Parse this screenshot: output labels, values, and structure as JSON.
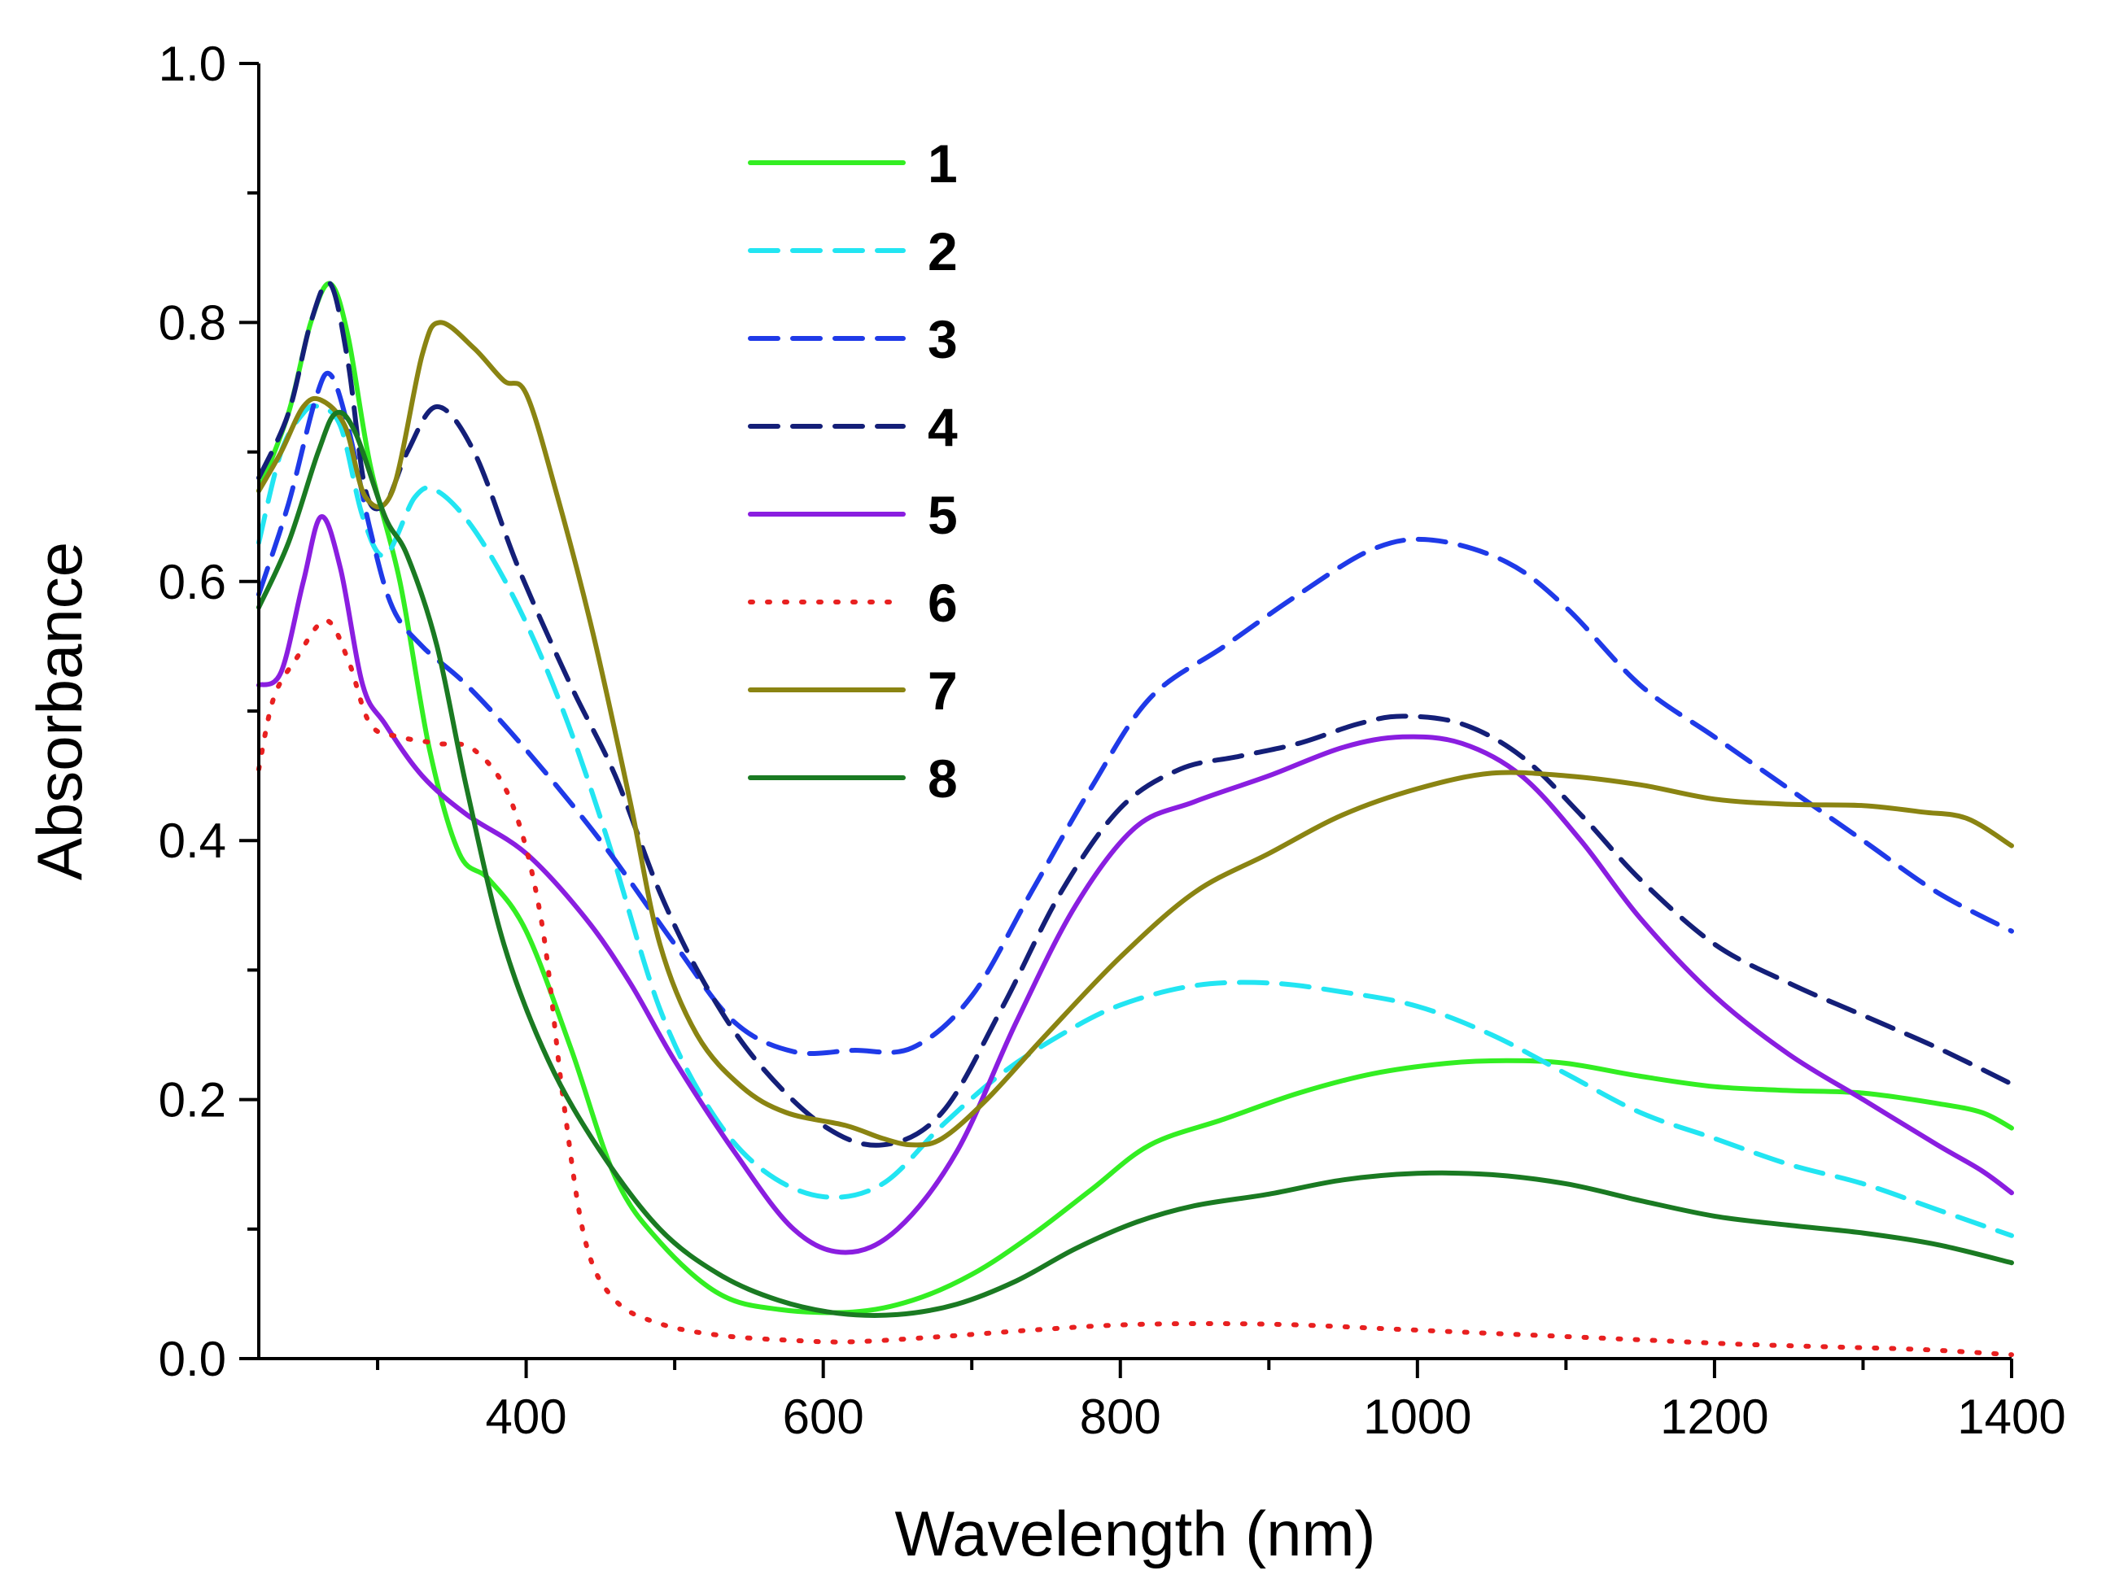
{
  "chart_data": {
    "type": "line",
    "title": "",
    "xlabel": "Wavelength (nm)",
    "ylabel": "Absorbance",
    "xlim": [
      220,
      1400
    ],
    "ylim": [
      0.0,
      1.0
    ],
    "x_major_ticks": [
      400,
      600,
      800,
      1000,
      1200,
      1400
    ],
    "x_minor_ticks": [
      300,
      500,
      700,
      900,
      1100,
      1300
    ],
    "x_tick_labels": [
      "400",
      "600",
      "800",
      "1000",
      "1200",
      "1400"
    ],
    "y_major_ticks": [
      0.0,
      0.2,
      0.4,
      0.6,
      0.8,
      1.0
    ],
    "y_minor_ticks": [
      0.1,
      0.3,
      0.5,
      0.7,
      0.9
    ],
    "y_tick_labels": [
      "0.0",
      "0.2",
      "0.4",
      "0.6",
      "0.8",
      "1.0"
    ],
    "grid": false,
    "legend_position": "top-center",
    "series": [
      {
        "name": "1",
        "color": "#33ee22",
        "dash": "solid",
        "points": [
          [
            220,
            0.67
          ],
          [
            240,
            0.73
          ],
          [
            255,
            0.8
          ],
          [
            268,
            0.83
          ],
          [
            280,
            0.79
          ],
          [
            295,
            0.69
          ],
          [
            315,
            0.6
          ],
          [
            335,
            0.47
          ],
          [
            355,
            0.39
          ],
          [
            375,
            0.37
          ],
          [
            400,
            0.33
          ],
          [
            430,
            0.24
          ],
          [
            460,
            0.14
          ],
          [
            490,
            0.09
          ],
          [
            530,
            0.05
          ],
          [
            570,
            0.038
          ],
          [
            620,
            0.036
          ],
          [
            660,
            0.045
          ],
          [
            700,
            0.065
          ],
          [
            740,
            0.095
          ],
          [
            780,
            0.13
          ],
          [
            820,
            0.165
          ],
          [
            870,
            0.185
          ],
          [
            920,
            0.205
          ],
          [
            970,
            0.22
          ],
          [
            1020,
            0.228
          ],
          [
            1060,
            0.23
          ],
          [
            1100,
            0.228
          ],
          [
            1150,
            0.218
          ],
          [
            1200,
            0.21
          ],
          [
            1250,
            0.207
          ],
          [
            1300,
            0.205
          ],
          [
            1350,
            0.197
          ],
          [
            1380,
            0.19
          ],
          [
            1400,
            0.178
          ]
        ]
      },
      {
        "name": "2",
        "color": "#22e5f2",
        "dash": "dashed",
        "points": [
          [
            220,
            0.63
          ],
          [
            235,
            0.7
          ],
          [
            250,
            0.73
          ],
          [
            260,
            0.735
          ],
          [
            275,
            0.72
          ],
          [
            290,
            0.65
          ],
          [
            305,
            0.62
          ],
          [
            325,
            0.665
          ],
          [
            340,
            0.67
          ],
          [
            365,
            0.64
          ],
          [
            395,
            0.58
          ],
          [
            425,
            0.5
          ],
          [
            455,
            0.4
          ],
          [
            490,
            0.27
          ],
          [
            525,
            0.19
          ],
          [
            560,
            0.145
          ],
          [
            600,
            0.125
          ],
          [
            640,
            0.135
          ],
          [
            680,
            0.18
          ],
          [
            720,
            0.22
          ],
          [
            760,
            0.25
          ],
          [
            800,
            0.273
          ],
          [
            850,
            0.288
          ],
          [
            900,
            0.29
          ],
          [
            950,
            0.283
          ],
          [
            1000,
            0.272
          ],
          [
            1050,
            0.25
          ],
          [
            1100,
            0.22
          ],
          [
            1150,
            0.19
          ],
          [
            1200,
            0.17
          ],
          [
            1250,
            0.15
          ],
          [
            1300,
            0.135
          ],
          [
            1350,
            0.115
          ],
          [
            1400,
            0.095
          ]
        ]
      },
      {
        "name": "3",
        "color": "#1f3ae8",
        "dash": "dashed",
        "points": [
          [
            220,
            0.59
          ],
          [
            240,
            0.66
          ],
          [
            258,
            0.74
          ],
          [
            268,
            0.76
          ],
          [
            280,
            0.72
          ],
          [
            295,
            0.64
          ],
          [
            310,
            0.58
          ],
          [
            330,
            0.55
          ],
          [
            360,
            0.52
          ],
          [
            400,
            0.47
          ],
          [
            450,
            0.4
          ],
          [
            500,
            0.32
          ],
          [
            540,
            0.26
          ],
          [
            580,
            0.237
          ],
          [
            620,
            0.238
          ],
          [
            660,
            0.24
          ],
          [
            700,
            0.28
          ],
          [
            740,
            0.36
          ],
          [
            780,
            0.44
          ],
          [
            820,
            0.51
          ],
          [
            870,
            0.55
          ],
          [
            920,
            0.59
          ],
          [
            970,
            0.625
          ],
          [
            1010,
            0.632
          ],
          [
            1060,
            0.615
          ],
          [
            1100,
            0.58
          ],
          [
            1150,
            0.52
          ],
          [
            1200,
            0.48
          ],
          [
            1250,
            0.44
          ],
          [
            1300,
            0.4
          ],
          [
            1350,
            0.36
          ],
          [
            1400,
            0.33
          ]
        ]
      },
      {
        "name": "4",
        "color": "#141f78",
        "dash": "dashed",
        "points": [
          [
            220,
            0.68
          ],
          [
            240,
            0.73
          ],
          [
            255,
            0.8
          ],
          [
            268,
            0.83
          ],
          [
            280,
            0.77
          ],
          [
            292,
            0.67
          ],
          [
            305,
            0.66
          ],
          [
            320,
            0.7
          ],
          [
            340,
            0.735
          ],
          [
            365,
            0.7
          ],
          [
            395,
            0.61
          ],
          [
            430,
            0.52
          ],
          [
            460,
            0.45
          ],
          [
            490,
            0.36
          ],
          [
            520,
            0.29
          ],
          [
            555,
            0.23
          ],
          [
            600,
            0.18
          ],
          [
            640,
            0.165
          ],
          [
            680,
            0.19
          ],
          [
            720,
            0.27
          ],
          [
            760,
            0.36
          ],
          [
            800,
            0.425
          ],
          [
            840,
            0.455
          ],
          [
            880,
            0.465
          ],
          [
            920,
            0.475
          ],
          [
            960,
            0.49
          ],
          [
            990,
            0.496
          ],
          [
            1030,
            0.49
          ],
          [
            1070,
            0.465
          ],
          [
            1110,
            0.42
          ],
          [
            1150,
            0.37
          ],
          [
            1200,
            0.32
          ],
          [
            1250,
            0.29
          ],
          [
            1300,
            0.265
          ],
          [
            1350,
            0.24
          ],
          [
            1400,
            0.212
          ]
        ]
      },
      {
        "name": "5",
        "color": "#8a1ee0",
        "dash": "solid",
        "points": [
          [
            220,
            0.52
          ],
          [
            235,
            0.53
          ],
          [
            250,
            0.6
          ],
          [
            262,
            0.65
          ],
          [
            275,
            0.61
          ],
          [
            290,
            0.52
          ],
          [
            305,
            0.49
          ],
          [
            330,
            0.45
          ],
          [
            360,
            0.42
          ],
          [
            400,
            0.39
          ],
          [
            440,
            0.34
          ],
          [
            470,
            0.29
          ],
          [
            500,
            0.23
          ],
          [
            540,
            0.16
          ],
          [
            580,
            0.1
          ],
          [
            615,
            0.082
          ],
          [
            650,
            0.1
          ],
          [
            690,
            0.16
          ],
          [
            730,
            0.26
          ],
          [
            770,
            0.35
          ],
          [
            810,
            0.41
          ],
          [
            850,
            0.43
          ],
          [
            900,
            0.45
          ],
          [
            950,
            0.472
          ],
          [
            990,
            0.48
          ],
          [
            1030,
            0.475
          ],
          [
            1070,
            0.45
          ],
          [
            1110,
            0.4
          ],
          [
            1150,
            0.34
          ],
          [
            1200,
            0.28
          ],
          [
            1250,
            0.235
          ],
          [
            1300,
            0.2
          ],
          [
            1350,
            0.165
          ],
          [
            1380,
            0.145
          ],
          [
            1400,
            0.128
          ]
        ]
      },
      {
        "name": "6",
        "color": "#e82020",
        "dash": "dotted",
        "points": [
          [
            220,
            0.455
          ],
          [
            230,
            0.51
          ],
          [
            245,
            0.54
          ],
          [
            265,
            0.57
          ],
          [
            280,
            0.54
          ],
          [
            295,
            0.49
          ],
          [
            315,
            0.48
          ],
          [
            340,
            0.475
          ],
          [
            365,
            0.47
          ],
          [
            390,
            0.43
          ],
          [
            410,
            0.34
          ],
          [
            425,
            0.2
          ],
          [
            440,
            0.09
          ],
          [
            460,
            0.045
          ],
          [
            490,
            0.027
          ],
          [
            530,
            0.018
          ],
          [
            580,
            0.014
          ],
          [
            620,
            0.013
          ],
          [
            680,
            0.017
          ],
          [
            740,
            0.022
          ],
          [
            800,
            0.026
          ],
          [
            860,
            0.027
          ],
          [
            920,
            0.026
          ],
          [
            980,
            0.023
          ],
          [
            1040,
            0.02
          ],
          [
            1100,
            0.017
          ],
          [
            1160,
            0.014
          ],
          [
            1220,
            0.011
          ],
          [
            1280,
            0.009
          ],
          [
            1340,
            0.007
          ],
          [
            1400,
            0.003
          ]
        ]
      },
      {
        "name": "7",
        "color": "#8a8412",
        "dash": "solid",
        "points": [
          [
            220,
            0.67
          ],
          [
            235,
            0.7
          ],
          [
            250,
            0.735
          ],
          [
            262,
            0.74
          ],
          [
            278,
            0.72
          ],
          [
            292,
            0.665
          ],
          [
            310,
            0.67
          ],
          [
            330,
            0.775
          ],
          [
            342,
            0.8
          ],
          [
            365,
            0.78
          ],
          [
            385,
            0.755
          ],
          [
            400,
            0.745
          ],
          [
            420,
            0.67
          ],
          [
            445,
            0.56
          ],
          [
            470,
            0.43
          ],
          [
            490,
            0.32
          ],
          [
            515,
            0.25
          ],
          [
            545,
            0.21
          ],
          [
            575,
            0.19
          ],
          [
            615,
            0.18
          ],
          [
            640,
            0.17
          ],
          [
            660,
            0.165
          ],
          [
            680,
            0.17
          ],
          [
            710,
            0.2
          ],
          [
            750,
            0.25
          ],
          [
            800,
            0.31
          ],
          [
            850,
            0.36
          ],
          [
            900,
            0.39
          ],
          [
            950,
            0.42
          ],
          [
            1000,
            0.44
          ],
          [
            1050,
            0.452
          ],
          [
            1100,
            0.45
          ],
          [
            1150,
            0.443
          ],
          [
            1200,
            0.432
          ],
          [
            1250,
            0.428
          ],
          [
            1300,
            0.427
          ],
          [
            1340,
            0.422
          ],
          [
            1370,
            0.417
          ],
          [
            1400,
            0.396
          ]
        ]
      },
      {
        "name": "8",
        "color": "#1a7a22",
        "dash": "solid",
        "points": [
          [
            220,
            0.58
          ],
          [
            240,
            0.63
          ],
          [
            260,
            0.7
          ],
          [
            272,
            0.73
          ],
          [
            285,
            0.715
          ],
          [
            305,
            0.65
          ],
          [
            320,
            0.62
          ],
          [
            340,
            0.55
          ],
          [
            360,
            0.44
          ],
          [
            385,
            0.32
          ],
          [
            415,
            0.23
          ],
          [
            450,
            0.16
          ],
          [
            490,
            0.1
          ],
          [
            530,
            0.065
          ],
          [
            570,
            0.045
          ],
          [
            610,
            0.035
          ],
          [
            650,
            0.034
          ],
          [
            690,
            0.042
          ],
          [
            730,
            0.06
          ],
          [
            770,
            0.085
          ],
          [
            810,
            0.105
          ],
          [
            850,
            0.118
          ],
          [
            900,
            0.127
          ],
          [
            950,
            0.138
          ],
          [
            1000,
            0.143
          ],
          [
            1050,
            0.142
          ],
          [
            1100,
            0.135
          ],
          [
            1150,
            0.122
          ],
          [
            1200,
            0.11
          ],
          [
            1250,
            0.103
          ],
          [
            1300,
            0.097
          ],
          [
            1350,
            0.088
          ],
          [
            1400,
            0.074
          ]
        ]
      }
    ]
  }
}
